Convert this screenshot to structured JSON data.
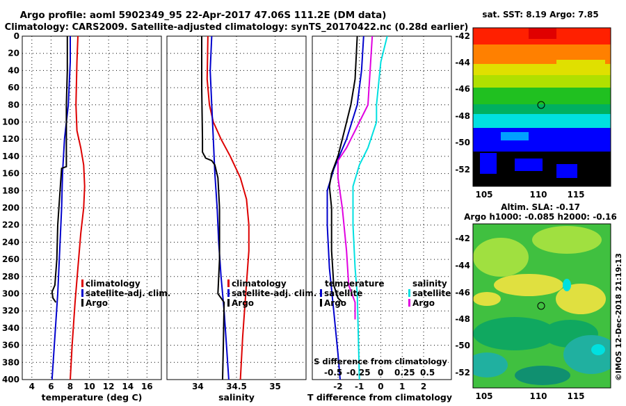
{
  "header": {
    "line1": "Argo profile: aoml 5902349_95 22-Apr-2017 47.06S 111.2E (DM data)",
    "line2": "Climatology: CARS2009. Satellite-adjusted climatology: synTS_20170422.nc (0.28d earlier)"
  },
  "colors": {
    "climatology": "#dd0000",
    "satellite": "#0000cc",
    "argo": "#000000",
    "sal_satellite": "#00e0e0",
    "sal_argo": "#e000e0"
  },
  "chart_data": [
    {
      "type": "line",
      "name": "temperature-profile",
      "xlabel": "temperature (deg C)",
      "xlim": [
        3,
        17.5
      ],
      "ylim": [
        0,
        400
      ],
      "yreversed": true,
      "xticks": [
        4,
        6,
        8,
        10,
        12,
        14,
        16
      ],
      "yticks": [
        0,
        20,
        40,
        60,
        80,
        100,
        120,
        140,
        160,
        180,
        200,
        220,
        240,
        260,
        280,
        300,
        320,
        340,
        360,
        380,
        400
      ],
      "legend": [
        "climatology",
        "satellite-adj. clim.",
        "Argo"
      ],
      "series": [
        {
          "name": "climatology",
          "color": "#dd0000",
          "points": [
            [
              8.8,
              0
            ],
            [
              8.7,
              30
            ],
            [
              8.6,
              80
            ],
            [
              8.7,
              110
            ],
            [
              9.1,
              130
            ],
            [
              9.4,
              150
            ],
            [
              9.5,
              175
            ],
            [
              9.4,
              200
            ],
            [
              9.1,
              230
            ],
            [
              8.8,
              270
            ],
            [
              8.5,
              310
            ],
            [
              8.2,
              360
            ],
            [
              8.0,
              400
            ]
          ]
        },
        {
          "name": "satellite-adj. clim.",
          "color": "#0000cc",
          "points": [
            [
              8.0,
              0
            ],
            [
              8.0,
              30
            ],
            [
              7.8,
              80
            ],
            [
              7.4,
              120
            ],
            [
              7.2,
              160
            ],
            [
              7.1,
              200
            ],
            [
              6.9,
              250
            ],
            [
              6.7,
              300
            ],
            [
              6.4,
              350
            ],
            [
              6.1,
              400
            ]
          ]
        },
        {
          "name": "Argo",
          "color": "#000000",
          "points": [
            [
              7.7,
              0
            ],
            [
              7.7,
              40
            ],
            [
              7.6,
              80
            ],
            [
              7.6,
              110
            ],
            [
              7.6,
              130
            ],
            [
              7.6,
              152
            ],
            [
              7.1,
              154
            ],
            [
              7.0,
              170
            ],
            [
              6.7,
              220
            ],
            [
              6.6,
              260
            ],
            [
              6.4,
              290
            ],
            [
              6.1,
              298
            ],
            [
              6.2,
              305
            ],
            [
              6.5,
              310
            ]
          ]
        }
      ]
    },
    {
      "type": "line",
      "name": "salinity-profile",
      "xlabel": "salinity",
      "xlim": [
        33.6,
        35.4
      ],
      "ylim": [
        0,
        400
      ],
      "yreversed": true,
      "xticks": [
        34,
        34.5,
        35
      ],
      "xticklabels": [
        "34",
        "34.5",
        "35"
      ],
      "legend": [
        "climatology",
        "satellite-adj. clim.",
        "Argo"
      ],
      "series": [
        {
          "name": "climatology",
          "color": "#dd0000",
          "points": [
            [
              34.13,
              0
            ],
            [
              34.12,
              50
            ],
            [
              34.15,
              80
            ],
            [
              34.2,
              100
            ],
            [
              34.3,
              120
            ],
            [
              34.42,
              140
            ],
            [
              34.55,
              165
            ],
            [
              34.63,
              190
            ],
            [
              34.66,
              220
            ],
            [
              34.66,
              250
            ],
            [
              34.62,
              300
            ],
            [
              34.58,
              350
            ],
            [
              34.55,
              400
            ]
          ]
        },
        {
          "name": "satellite-adj. clim.",
          "color": "#0000cc",
          "points": [
            [
              34.18,
              0
            ],
            [
              34.16,
              40
            ],
            [
              34.18,
              80
            ],
            [
              34.2,
              120
            ],
            [
              34.22,
              160
            ],
            [
              34.25,
              200
            ],
            [
              34.27,
              240
            ],
            [
              34.3,
              280
            ],
            [
              34.34,
              320
            ],
            [
              34.37,
              360
            ],
            [
              34.4,
              400
            ]
          ]
        },
        {
          "name": "Argo",
          "color": "#000000",
          "points": [
            [
              34.05,
              0
            ],
            [
              34.05,
              60
            ],
            [
              34.06,
              120
            ],
            [
              34.06,
              135
            ],
            [
              34.1,
              142
            ],
            [
              34.18,
              145
            ],
            [
              34.22,
              150
            ],
            [
              34.26,
              165
            ],
            [
              34.28,
              200
            ],
            [
              34.28,
              260
            ],
            [
              34.26,
              300
            ],
            [
              34.34,
              310
            ],
            [
              34.33,
              360
            ],
            [
              34.32,
              400
            ]
          ]
        }
      ]
    },
    {
      "type": "line",
      "name": "difference-profile",
      "xlabel": "T difference from climatology",
      "toplabel": "S difference from climatology",
      "xlim": [
        -3.2,
        3.3
      ],
      "ylim": [
        0,
        400
      ],
      "yreversed": true,
      "xticks": [
        -2,
        -1,
        0,
        1,
        2
      ],
      "xticklabels": [
        "-2",
        "-1",
        "0",
        "1",
        "2"
      ],
      "stopticks": [
        "-0.5",
        "-0.25",
        "0",
        "0.25",
        "0.5"
      ],
      "legend_left": [
        "temperature",
        "satellite",
        "Argo"
      ],
      "legend_right": [
        "salinity",
        "satellite",
        "Argo"
      ],
      "series": [
        {
          "name": "temperature satellite",
          "color": "#0000cc",
          "points": [
            [
              -0.8,
              0
            ],
            [
              -0.9,
              40
            ],
            [
              -1.1,
              80
            ],
            [
              -1.6,
              120
            ],
            [
              -2.2,
              155
            ],
            [
              -2.5,
              180
            ],
            [
              -2.5,
              220
            ],
            [
              -2.4,
              270
            ],
            [
              -2.2,
              320
            ],
            [
              -2.0,
              370
            ],
            [
              -1.9,
              400
            ]
          ]
        },
        {
          "name": "temperature Argo",
          "color": "#000000",
          "points": [
            [
              -1.1,
              0
            ],
            [
              -1.2,
              50
            ],
            [
              -1.4,
              80
            ],
            [
              -1.7,
              110
            ],
            [
              -2.0,
              140
            ],
            [
              -2.3,
              160
            ],
            [
              -2.4,
              175
            ],
            [
              -2.3,
              200
            ],
            [
              -2.3,
              250
            ],
            [
              -2.2,
              290
            ],
            [
              -2.0,
              305
            ],
            [
              -1.8,
              310
            ]
          ]
        },
        {
          "name": "salinity satellite",
          "color": "#00e0e0",
          "points": [
            [
              0.3,
              0
            ],
            [
              0.0,
              30
            ],
            [
              -0.2,
              80
            ],
            [
              -0.2,
              100
            ],
            [
              -0.6,
              130
            ],
            [
              -1.0,
              150
            ],
            [
              -1.3,
              175
            ],
            [
              -1.3,
              220
            ],
            [
              -1.2,
              270
            ],
            [
              -1.1,
              300
            ],
            [
              -1.05,
              350
            ],
            [
              -1.0,
              400
            ]
          ]
        },
        {
          "name": "salinity Argo",
          "color": "#e000e0",
          "points": [
            [
              -0.4,
              0
            ],
            [
              -0.5,
              40
            ],
            [
              -0.6,
              80
            ],
            [
              -1.0,
              100
            ],
            [
              -1.6,
              130
            ],
            [
              -2.0,
              145
            ],
            [
              -2.0,
              165
            ],
            [
              -1.8,
              200
            ],
            [
              -1.6,
              250
            ],
            [
              -1.5,
              290
            ],
            [
              -1.2,
              310
            ],
            [
              -1.2,
              330
            ]
          ]
        }
      ]
    }
  ],
  "maps": {
    "sst": {
      "title": "sat. SST: 8.19 Argo: 7.85",
      "yticks": [
        "-42",
        "-44",
        "-46",
        "-48",
        "-50",
        "-52"
      ],
      "xticks": [
        "105",
        "110",
        "115"
      ]
    },
    "sla": {
      "title1": "Altim. SLA: -0.17",
      "title2": "Argo h1000: -0.085 h2000: -0.16",
      "yticks": [
        "-42",
        "-44",
        "-46",
        "-48",
        "-50",
        "-52"
      ],
      "xticks": [
        "105",
        "110",
        "115"
      ]
    }
  },
  "credit": "©IMOS 12-Dec-2018 21:19:13"
}
